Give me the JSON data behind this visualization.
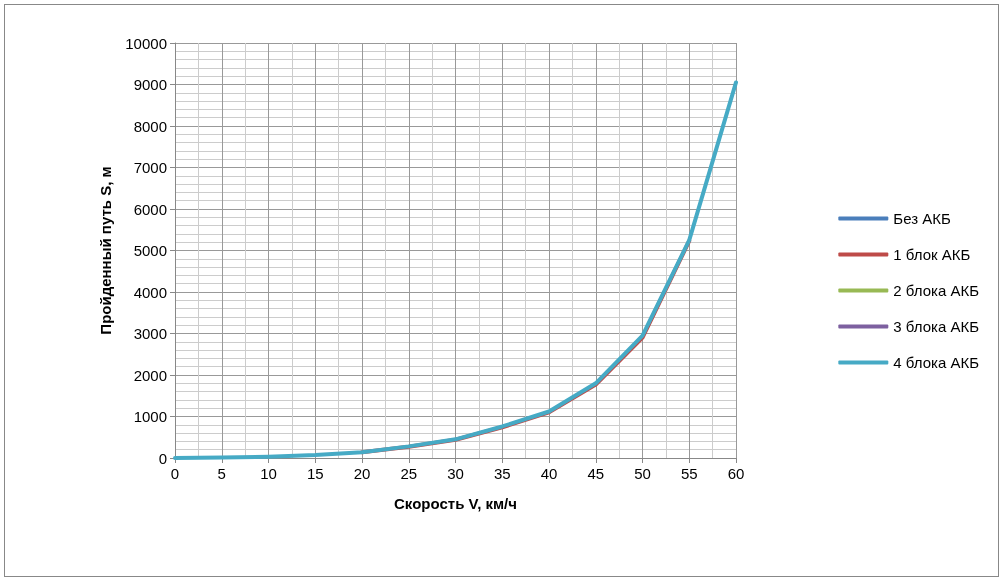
{
  "chart_data": {
    "type": "line",
    "xlabel": "Скорость V, км/ч",
    "ylabel": "Пройденный путь S, м",
    "x": [
      0,
      5,
      10,
      15,
      20,
      25,
      30,
      35,
      40,
      45,
      50,
      55,
      60
    ],
    "series": [
      {
        "name": "Без АКБ",
        "color": "#4a7ebb",
        "values": [
          null,
          null,
          null,
          null,
          null,
          null,
          null,
          null,
          null,
          null,
          null,
          null,
          null
        ]
      },
      {
        "name": "1 блок АКБ",
        "color": "#be4b48",
        "values": [
          null,
          null,
          null,
          null,
          140,
          270,
          440,
          740,
          1100,
          1770,
          2900,
          5230,
          null
        ]
      },
      {
        "name": "2 блока АКБ",
        "color": "#98b954",
        "values": [
          null,
          null,
          null,
          null,
          null,
          null,
          null,
          null,
          null,
          null,
          null,
          null,
          null
        ]
      },
      {
        "name": "3 блока АКБ",
        "color": "#7d60a0",
        "values": [
          null,
          null,
          null,
          null,
          null,
          null,
          null,
          null,
          null,
          null,
          null,
          null,
          null
        ]
      },
      {
        "name": "4 блока АКБ",
        "color": "#46aac5",
        "values": [
          0,
          10,
          30,
          70,
          140,
          280,
          450,
          760,
          1120,
          1800,
          2950,
          5250,
          9050
        ]
      }
    ],
    "xlim": [
      0,
      60
    ],
    "xticks": [
      0,
      5,
      10,
      15,
      20,
      25,
      30,
      35,
      40,
      45,
      50,
      55,
      60
    ],
    "ylim": [
      0,
      10000
    ],
    "yticks": [
      0,
      1000,
      2000,
      3000,
      4000,
      5000,
      6000,
      7000,
      8000,
      9000,
      10000
    ],
    "grid": true,
    "legend": "right",
    "marker": "none",
    "line_style": "solid"
  }
}
